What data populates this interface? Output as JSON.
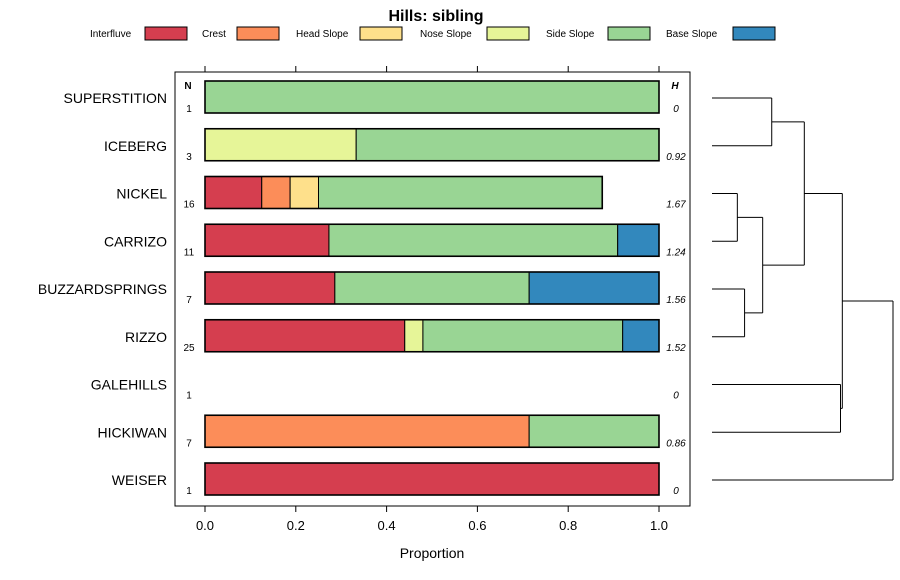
{
  "chart_data": {
    "type": "bar",
    "orientation": "horizontal",
    "stacked": true,
    "title": "Hills: sibling",
    "xlabel": "Proportion",
    "ylabel": "",
    "xlim": [
      0,
      1
    ],
    "xticks": [
      "0.0",
      "0.2",
      "0.4",
      "0.6",
      "0.8",
      "1.0"
    ],
    "n_header": "N",
    "h_header": "H",
    "legend_position": "top",
    "categories": [
      "Interfluve",
      "Crest",
      "Head Slope",
      "Nose Slope",
      "Side Slope",
      "Base Slope"
    ],
    "colors": [
      "#D53E4F",
      "#FC8D59",
      "#FEE08B",
      "#E6F598",
      "#99D594",
      "#3288BD"
    ],
    "rows": [
      {
        "name": "SUPERSTITION",
        "n": "1",
        "h": "0",
        "values": [
          0,
          0,
          0,
          0,
          1.0,
          0
        ]
      },
      {
        "name": "ICEBERG",
        "n": "3",
        "h": "0.92",
        "values": [
          0,
          0,
          0,
          0.333,
          0.667,
          0
        ]
      },
      {
        "name": "NICKEL",
        "n": "16",
        "h": "1.67",
        "values": [
          0.125,
          0.0625,
          0.0625,
          0,
          0.625,
          0
        ]
      },
      {
        "name": "CARRIZO",
        "n": "11",
        "h": "1.24",
        "values": [
          0.273,
          0,
          0,
          0,
          0.636,
          0.091
        ]
      },
      {
        "name": "BUZZARDSPRINGS",
        "n": "7",
        "h": "1.56",
        "values": [
          0.286,
          0,
          0,
          0,
          0.428,
          0.286
        ]
      },
      {
        "name": "RIZZO",
        "n": "25",
        "h": "1.52",
        "values": [
          0.44,
          0,
          0,
          0.04,
          0.44,
          0.08
        ]
      },
      {
        "name": "GALEHILLS",
        "n": "1",
        "h": "0",
        "values": [
          0,
          0,
          0,
          0,
          0,
          0
        ]
      },
      {
        "name": "HICKIWAN",
        "n": "7",
        "h": "0.86",
        "values": [
          0,
          0.714,
          0,
          0,
          0.286,
          0
        ]
      },
      {
        "name": "WEISER",
        "n": "1",
        "h": "0",
        "values": [
          1.0,
          0,
          0,
          0,
          0,
          0
        ]
      }
    ],
    "dendrogram": {
      "leaves": [
        "SUPERSTITION",
        "ICEBERG",
        "NICKEL",
        "CARRIZO",
        "BUZZARDSPRINGS",
        "RIZZO",
        "GALEHILLS",
        "HICKIWAN",
        "WEISER"
      ],
      "merges": [
        {
          "a": 2,
          "b": 3,
          "height": 0.14
        },
        {
          "a": 4,
          "b": 5,
          "height": 0.18
        },
        {
          "a": "m0",
          "b": "m1",
          "height": 0.28
        },
        {
          "a": 0,
          "b": 1,
          "height": 0.33
        },
        {
          "a": "m3",
          "b": "m2",
          "height": 0.51
        },
        {
          "a": 6,
          "b": 7,
          "height": 0.71
        },
        {
          "a": "m4",
          "b": "m5",
          "height": 0.72
        },
        {
          "a": "m6",
          "b": 8,
          "height": 1.0
        }
      ]
    }
  }
}
